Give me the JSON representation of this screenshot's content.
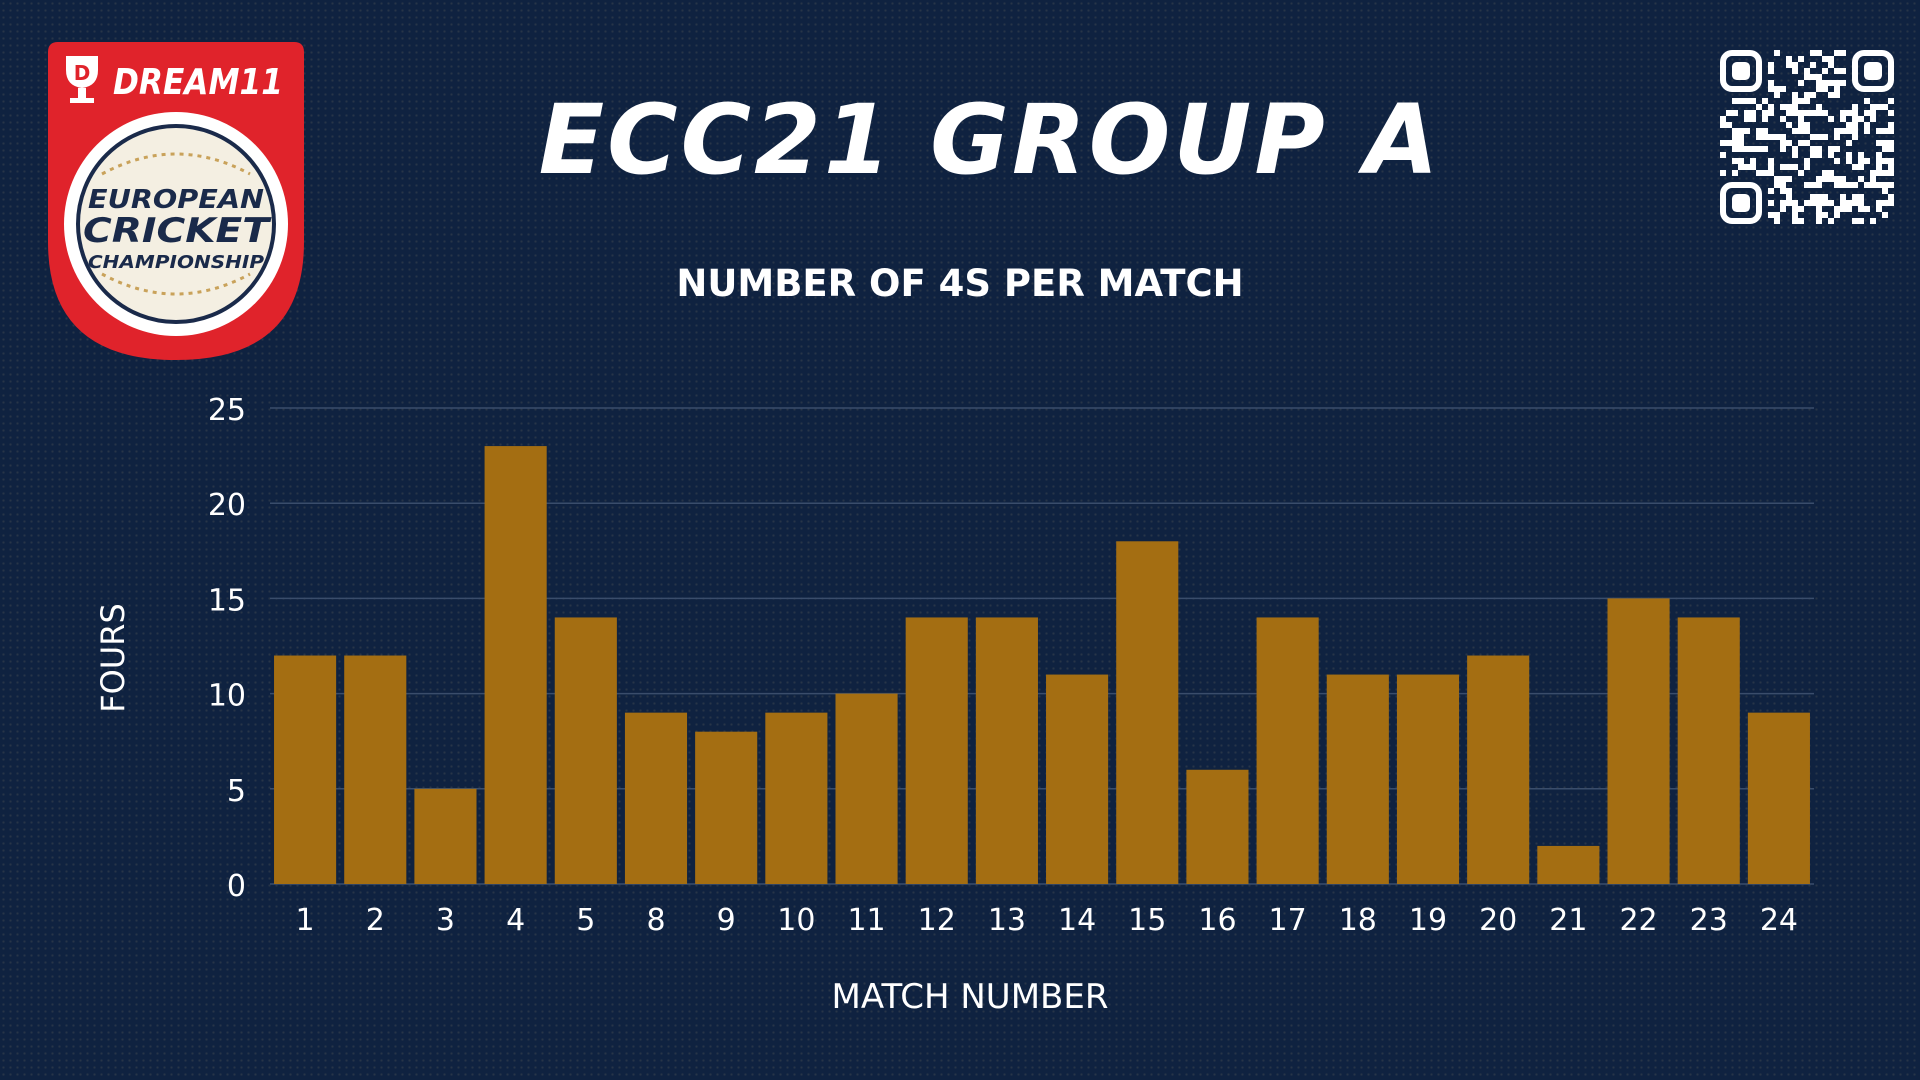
{
  "header": {
    "title": "ECC21 GROUP A",
    "logo": {
      "brand": "DREAM11",
      "line1": "EUROPEAN",
      "line2": "CRICKET",
      "line3": "CHAMPIONSHIP"
    },
    "qr_icon": "qr-code-icon"
  },
  "colors": {
    "background": "#0f2240",
    "bar": "#a46e12",
    "logo_red": "#e0232b",
    "grid": "#3a4d6b",
    "text": "#ffffff"
  },
  "chart_data": {
    "type": "bar",
    "title": "NUMBER OF 4S PER MATCH",
    "xlabel": "MATCH NUMBER",
    "ylabel": "FOURS",
    "categories": [
      "1",
      "2",
      "3",
      "4",
      "5",
      "8",
      "9",
      "10",
      "11",
      "12",
      "13",
      "14",
      "15",
      "16",
      "17",
      "18",
      "19",
      "20",
      "21",
      "22",
      "23",
      "24"
    ],
    "values": [
      12,
      12,
      5,
      23,
      14,
      9,
      8,
      9,
      10,
      14,
      14,
      11,
      18,
      6,
      14,
      11,
      11,
      12,
      2,
      15,
      14,
      9
    ],
    "ylim": [
      0,
      25
    ],
    "yticks": [
      "0",
      "5",
      "10",
      "15",
      "20",
      "25"
    ],
    "grid": true,
    "legend": "none"
  }
}
